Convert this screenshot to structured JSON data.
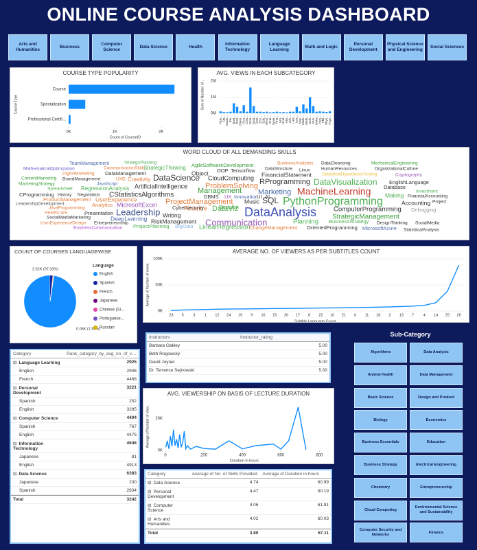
{
  "header": {
    "title": "ONLINE COURSE ANALYSIS DASHBOARD"
  },
  "nav": [
    "Arts and Humanities",
    "Business",
    "Computer Science",
    "Data Science",
    "Health",
    "Information Technology",
    "Language Learning",
    "Math and Logic",
    "Personal Development",
    "Physical Science and Engineering",
    "Social Sciences"
  ],
  "chart_data": [
    {
      "type": "hbar",
      "title": "COURSE TYPE POPULARITY",
      "categories": [
        "Course",
        "Specialization",
        "Professional Certifi..."
      ],
      "values": [
        2290,
        360,
        42
      ],
      "color": "#118dff",
      "xlim": [
        0,
        2450
      ],
      "xticks": [
        {
          "value": 0,
          "label": "0K"
        },
        {
          "value": 1000,
          "label": "1K"
        },
        {
          "value": 2000,
          "label": "2K"
        }
      ],
      "x_label": "Count of CourseID",
      "y_label": "Course Type",
      "grid": false
    },
    {
      "type": "bar",
      "title": "AVG. VIEWS IN EACH SUBCATEGORY",
      "color": "#118dff",
      "categories": [
        "Algo...",
        "Ani...",
        "Basic...",
        "Bio...",
        "Busi...",
        "Busi...",
        "Chem...",
        "Clou...",
        "Com...",
        "Data...",
        "Data...",
        "Desi...",
        "Eco...",
        "Edu...",
        "Elect...",
        "Entr...",
        "Envir...",
        "Fina...",
        "Gra...",
        "Heal...",
        "Hist...",
        "Info...",
        "Law...",
        "Lea...",
        "Mac...",
        "Mark...",
        "Math...",
        "Mob...",
        "Mus...",
        "Netw...",
        "Pers...",
        "Phil...",
        "Phys...",
        "Psyc..."
      ],
      "values": [
        120000,
        80000,
        70000,
        100000,
        620000,
        400000,
        120000,
        500000,
        100000,
        1600000,
        450000,
        100000,
        100000,
        80000,
        100000,
        60000,
        80000,
        100000,
        70000,
        80000,
        60000,
        100000,
        100000,
        400000,
        120000,
        550000,
        300000,
        1000000,
        450000,
        100000,
        120000,
        100000,
        80000,
        120000
      ],
      "ylim": [
        0,
        2300000
      ],
      "yticks": [
        {
          "value": 0,
          "label": "0M"
        },
        {
          "value": 1000000,
          "label": "1M"
        },
        {
          "value": 2000000,
          "label": "2M"
        }
      ],
      "y_label": "Sum of Number of...",
      "grid": true
    },
    {
      "type": "pie",
      "title": "COUNT OF COURSES LANGUAGEWISE",
      "legend_title": "Language",
      "categories": [
        "English",
        "Spanish",
        "French",
        "Japanese",
        "Chinese (Si...",
        "Portuguese...",
        "Russian"
      ],
      "values": [
        2620,
        52,
        10,
        4,
        3,
        2,
        1
      ],
      "value_labels": [
        "2.62K (97.33%)",
        "0.05K (1.93%)",
        null,
        null,
        null,
        null,
        null
      ],
      "colors": [
        "#118dff",
        "#12239e",
        "#e66c37",
        "#6b007b",
        "#e044a7",
        "#744ec2",
        "#d9b300"
      ]
    },
    {
      "type": "line",
      "title": "AVERAGE NO. OF VIEWERS AS PER SUBTITLES COUNT",
      "color": "#118dff",
      "categories": [
        "23",
        "5",
        "3",
        "1",
        "12",
        "24",
        "19",
        "9",
        "16",
        "15",
        "20",
        "17",
        "8",
        "22",
        "10",
        "21",
        "6",
        "11",
        "18",
        "2",
        "13",
        "7",
        "4",
        "14",
        "25",
        "26"
      ],
      "values": [
        1000,
        2000,
        2500,
        3000,
        3500,
        3800,
        4000,
        4200,
        4500,
        4800,
        5000,
        5200,
        5500,
        5800,
        6000,
        6300,
        6600,
        7000,
        7400,
        8000,
        8600,
        9500,
        11000,
        16000,
        38000,
        88000
      ],
      "ylim": [
        0,
        100000
      ],
      "yticks": [
        {
          "value": 0,
          "label": "0K"
        },
        {
          "value": 50000,
          "label": "50K"
        },
        {
          "value": 100000,
          "label": "100K"
        }
      ],
      "x_label": "Subtitle Language Count",
      "y_label": "Average of Number of views",
      "grid": true
    },
    {
      "type": "line",
      "title": "AVG. VIEWERSHIP ON BASIS OF LECTURE DURATION",
      "color": "#118dff",
      "x": [
        2,
        10,
        18,
        26,
        34,
        42,
        50,
        58,
        66,
        74,
        82,
        90,
        98,
        106,
        114,
        130,
        160,
        200,
        260,
        330,
        400,
        470,
        560,
        600,
        640,
        690,
        730
      ],
      "values": [
        2000,
        6000,
        1000,
        9000,
        2500,
        13000,
        3000,
        7000,
        1500,
        10000,
        2000,
        5000,
        12000,
        1000,
        3000,
        800,
        2500,
        1200,
        800,
        6000,
        1000,
        3000,
        4000,
        800,
        6000,
        27000,
        500
      ],
      "xlim": [
        0,
        820
      ],
      "xticks": [
        0,
        200,
        400,
        600,
        800
      ],
      "ylim": [
        0,
        30000
      ],
      "yticks": [
        {
          "value": 0,
          "label": "0K"
        },
        {
          "value": 20000,
          "label": "20K"
        }
      ],
      "x_label": "Duration in hours",
      "y_label": "Average of Number of view..",
      "grid": false
    }
  ],
  "word_cloud": {
    "title": "WORD CLOUD OF ALL DEMANDING SKILLS",
    "words": [
      {
        "text": "TeamManagement",
        "color": "#4a6aa8"
      },
      {
        "text": "StrategicPlanning",
        "color": "#4caf50"
      },
      {
        "text": "AgileSoftwareDevelopment",
        "color": "#3a9e3a"
      },
      {
        "text": "BusinessAnalytics",
        "color": "#e07b39"
      },
      {
        "text": "DataCleansing",
        "color": "#333333"
      },
      {
        "text": "MechanicalEngineering",
        "color": "#3a9e3a"
      },
      {
        "text": "MathematicalOptimization",
        "color": "#6a5acd"
      },
      {
        "text": "CommunicationSkills",
        "color": "#e07b39"
      },
      {
        "text": "StrategicThinking",
        "color": "#4caf50"
      },
      {
        "text": "OOP",
        "color": "#333333"
      },
      {
        "text": "Tensorflow",
        "color": "#333333"
      },
      {
        "text": "DataStructure",
        "color": "#333333"
      },
      {
        "text": "Linux",
        "color": "#333333"
      },
      {
        "text": "HumanResources",
        "color": "#333333"
      },
      {
        "text": "OrganizationalCulture",
        "color": "#333333"
      },
      {
        "text": "DigitalMarketing",
        "color": "#e07b39"
      },
      {
        "text": "DataManagement",
        "color": "#333333"
      },
      {
        "text": "Object",
        "color": "#333333"
      },
      {
        "text": "FinancialStatement",
        "color": "#333333"
      },
      {
        "text": "StatisticalHypothesisTesting",
        "color": "#f0c040"
      },
      {
        "text": "Cryptography",
        "color": "#9b59b6"
      },
      {
        "text": "ContentMarketing",
        "color": "#3a9e3a"
      },
      {
        "text": "BrandManagement",
        "color": "#333333"
      },
      {
        "text": "UXD",
        "color": "#e07b39"
      },
      {
        "text": "Creativity",
        "color": "#e07b39"
      },
      {
        "text": "DataScience",
        "color": "#333333"
      },
      {
        "text": "CloudComputing",
        "color": "#333333"
      },
      {
        "text": "RProgramming",
        "color": "#333333"
      },
      {
        "text": "DataVisualization",
        "color": "#4caf50"
      },
      {
        "text": "EnglishLanguage",
        "color": "#333333"
      },
      {
        "text": "MarketingStrategy",
        "color": "#3a9e3a"
      },
      {
        "text": "JavaScript",
        "color": "#4a6aa8"
      },
      {
        "text": "ArtificialIntelligence",
        "color": "#333333"
      },
      {
        "text": "ProblemSolving",
        "color": "#e07b39"
      },
      {
        "text": "Spreadsheet",
        "color": "#4caf50"
      },
      {
        "text": "RegressionAnalysis",
        "color": "#4caf50"
      },
      {
        "text": "Management",
        "color": "#3a9e3a"
      },
      {
        "text": "Marketing",
        "color": "#4a6aa8"
      },
      {
        "text": "MachineLearning",
        "color": "#c0392b"
      },
      {
        "text": "Database",
        "color": "#333333"
      },
      {
        "text": "Investment",
        "color": "#4caf50"
      },
      {
        "text": "CProgramming",
        "color": "#333333"
      },
      {
        "text": "History",
        "color": "#333333"
      },
      {
        "text": "Negotiation",
        "color": "#333333"
      },
      {
        "text": "CStatistics",
        "color": "#333333"
      },
      {
        "text": "Algorithms",
        "color": "#333333"
      },
      {
        "text": "DBMS",
        "color": "#333333"
      },
      {
        "text": "UX",
        "color": "#9b59b6"
      },
      {
        "text": "Innovation",
        "color": "#4a6aa8"
      },
      {
        "text": "UI",
        "color": "#333333"
      },
      {
        "text": "AI",
        "color": "#333333"
      },
      {
        "text": "Making",
        "color": "#4caf50"
      },
      {
        "text": "FinancialAccounting",
        "color": "#333333"
      },
      {
        "text": "ProductManagement",
        "color": "#e07b39"
      },
      {
        "text": "UserExperience",
        "color": "#e07b39"
      },
      {
        "text": "ProjectManagement",
        "color": "#e07b39"
      },
      {
        "text": "SQL",
        "color": "#333333"
      },
      {
        "text": "PythonProgramming",
        "color": "#4caf50"
      },
      {
        "text": "Accounting",
        "color": "#333333"
      },
      {
        "text": "Project",
        "color": "#333333"
      },
      {
        "text": "LeadershipDevelopment",
        "color": "#555555"
      },
      {
        "text": "Analytics",
        "color": "#e07b39"
      },
      {
        "text": "MicrosoftExcel",
        "color": "#9b59b6"
      },
      {
        "text": "Finance",
        "color": "#e07b39"
      },
      {
        "text": "DataViz",
        "color": "#4caf50"
      },
      {
        "text": "Music",
        "color": "#333333"
      },
      {
        "text": "Debugging",
        "color": "#999999"
      },
      {
        "text": "JavaProgramming",
        "color": "#e07b39"
      },
      {
        "text": "Leadership",
        "color": "#3b4f8a"
      },
      {
        "text": "Writing",
        "color": "#333333"
      },
      {
        "text": "Cybersecurity",
        "color": "#333333"
      },
      {
        "text": "Decision",
        "color": "#3a9e3a"
      },
      {
        "text": "DataAnalysis",
        "color": "#3f51b5"
      },
      {
        "text": "ComputerProgramming",
        "color": "#333333"
      },
      {
        "text": "HealthCare",
        "color": "#e07b39"
      },
      {
        "text": "SocialMediaMarketing",
        "color": "#333333"
      },
      {
        "text": "Presentation",
        "color": "#333333"
      },
      {
        "text": "StrategicManagement",
        "color": "#3a9e3a"
      },
      {
        "text": "BusinessStrategy",
        "color": "#4caf50"
      },
      {
        "text": "UserExperienceDesign",
        "color": "#e07b39"
      },
      {
        "text": "Entrepreneurship",
        "color": "#333333"
      },
      {
        "text": "DeepLearning",
        "color": "#4a6aa8"
      },
      {
        "text": "RiskManagement",
        "color": "#333333"
      },
      {
        "text": "Communication",
        "color": "#9b59b6"
      },
      {
        "text": "Planning",
        "color": "#4caf50"
      },
      {
        "text": "DesignThinking",
        "color": "#333333"
      },
      {
        "text": "SocialMedia",
        "color": "#333333"
      },
      {
        "text": "BusinessCommunication",
        "color": "#b04ad4"
      },
      {
        "text": "ProjectPlanning",
        "color": "#4caf50"
      },
      {
        "text": "BigData",
        "color": "#8bb4e0"
      },
      {
        "text": "LinearRegression",
        "color": "#4caf50"
      },
      {
        "text": "ChangeManagement",
        "color": "#e07b39"
      },
      {
        "text": "OrientedProgramming",
        "color": "#333333"
      },
      {
        "text": "MicrosoftAzure",
        "color": "#4a6aa8"
      },
      {
        "text": "StatisticalAnalysis",
        "color": "#333333"
      }
    ]
  },
  "instructor_table": {
    "columns": [
      "Instructors",
      "Instructor_rating"
    ],
    "rows": [
      [
        "Barbara Oakley",
        "5.00"
      ],
      [
        "Beth Rogowsky",
        "5.00"
      ],
      [
        "David Joyner",
        "5.00"
      ],
      [
        "Dr. Terrence Sejnowski",
        "5.00"
      ]
    ]
  },
  "rank_table": {
    "columns": [
      "Category",
      "Rank_category_by_avg_no_of_views"
    ],
    "groups": [
      {
        "name": "Language Learning",
        "value": "2925",
        "children": [
          [
            "English",
            "2906"
          ],
          [
            "French",
            "4468"
          ]
        ]
      },
      {
        "name": "Personal Development",
        "value": "3221",
        "children": [
          [
            "Spanish",
            "252"
          ],
          [
            "English",
            "3285"
          ]
        ]
      },
      {
        "name": "Computer Science",
        "value": "4404",
        "children": [
          [
            "Spanish",
            "767"
          ],
          [
            "English",
            "4475"
          ]
        ]
      },
      {
        "name": "Information Technology",
        "value": "4648",
        "children": [
          [
            "Japanese",
            "81"
          ],
          [
            "English",
            "4913"
          ]
        ]
      },
      {
        "name": "Data Science",
        "value": "6383",
        "children": [
          [
            "Japanese",
            "230"
          ],
          [
            "Spanish",
            "2934"
          ]
        ]
      }
    ],
    "total": [
      "Total",
      "3242"
    ]
  },
  "skills_table": {
    "columns": [
      "Category",
      "Average of No. of Skills Provided",
      "Average of Duration in hours"
    ],
    "rows": [
      [
        "Data Science",
        "4.74",
        "60.99"
      ],
      [
        "Personal Development",
        "4.47",
        "50.19"
      ],
      [
        "Computer Science",
        "4.06",
        "61.91"
      ],
      [
        "Arts and Humanities",
        "4.02",
        "60.03"
      ]
    ],
    "total": [
      "Total",
      "3.80",
      "57.11"
    ]
  },
  "subcategory": {
    "title": "Sub-Category",
    "items": [
      "Algorithms",
      "Data Analysis",
      "Animal Health",
      "Data Management",
      "Basic Science",
      "Design and Product",
      "Biology",
      "Economics",
      "Business Essentials",
      "Education",
      "Business Strategy",
      "Electrical Engineering",
      "Chemistry",
      "Entrepreneurship",
      "Cloud Computing",
      "Environmental Science and Sustainability",
      "Computer Security and Networks",
      "Finance"
    ]
  }
}
